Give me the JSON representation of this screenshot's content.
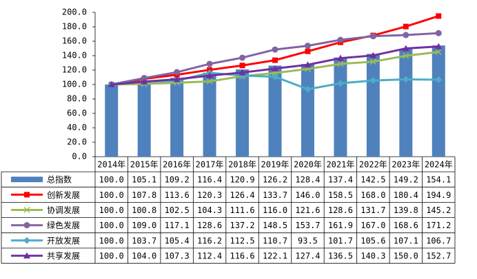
{
  "chart_data": {
    "type": "combo",
    "categories": [
      "2014年",
      "2015年",
      "2016年",
      "2017年",
      "2018年",
      "2019年",
      "2020年",
      "2021年",
      "2022年",
      "2023年",
      "2024年"
    ],
    "ylim": [
      0,
      200
    ],
    "yticks": [
      {
        "value": 0,
        "label": "0.0"
      },
      {
        "value": 20,
        "label": "20.0"
      },
      {
        "value": 40,
        "label": "40.0"
      },
      {
        "value": 60,
        "label": "60.0"
      },
      {
        "value": 80,
        "label": "80.0"
      },
      {
        "value": 100,
        "label": "100.0"
      },
      {
        "value": 120,
        "label": "120.0"
      },
      {
        "value": 140,
        "label": "140.0"
      },
      {
        "value": 160,
        "label": "160.0"
      },
      {
        "value": 180,
        "label": "180.0"
      },
      {
        "value": 200,
        "label": "200.0"
      }
    ],
    "grid": false,
    "series": [
      {
        "name": "总指数",
        "type": "bar",
        "color": "#4f81bd",
        "values": [
          100,
          105.1,
          109.2,
          116.4,
          120.9,
          126.2,
          128.4,
          137.4,
          142.5,
          149.2,
          154.1
        ],
        "value_labels": [
          "100.0",
          "105.1",
          "109.2",
          "116.4",
          "120.9",
          "126.2",
          "128.4",
          "137.4",
          "142.5",
          "149.2",
          "154.1"
        ]
      },
      {
        "name": "创新发展",
        "type": "line",
        "marker": "square",
        "color": "#ff0000",
        "values": [
          100,
          107.8,
          113.6,
          120.3,
          126.4,
          133.7,
          146,
          158.5,
          168,
          180.4,
          194.9
        ],
        "value_labels": [
          "100.0",
          "107.8",
          "113.6",
          "120.3",
          "126.4",
          "133.7",
          "146.0",
          "158.5",
          "168.0",
          "180.4",
          "194.9"
        ]
      },
      {
        "name": "协调发展",
        "type": "line",
        "marker": "x",
        "color": "#9bbb59",
        "values": [
          100,
          100.8,
          102.5,
          104.3,
          111.6,
          116,
          121.6,
          128.6,
          131.7,
          139.8,
          145.2
        ],
        "value_labels": [
          "100.0",
          "100.8",
          "102.5",
          "104.3",
          "111.6",
          "116.0",
          "121.6",
          "128.6",
          "131.7",
          "139.8",
          "145.2"
        ]
      },
      {
        "name": "绿色发展",
        "type": "line",
        "marker": "circle",
        "color": "#8064a2",
        "values": [
          100,
          109,
          117.1,
          128.6,
          137.2,
          148.5,
          153.7,
          161.9,
          167,
          168.6,
          171.2
        ],
        "value_labels": [
          "100.0",
          "109.0",
          "117.1",
          "128.6",
          "137.2",
          "148.5",
          "153.7",
          "161.9",
          "167.0",
          "168.6",
          "171.2"
        ]
      },
      {
        "name": "开放发展",
        "type": "line",
        "marker": "diamond",
        "color": "#4bacc6",
        "values": [
          100,
          103.7,
          105.4,
          116.2,
          112.5,
          110.7,
          93.5,
          101.7,
          105.6,
          107.1,
          106.7
        ],
        "value_labels": [
          "100.0",
          "103.7",
          "105.4",
          "116.2",
          "112.5",
          "110.7",
          "93.5",
          "101.7",
          "105.6",
          "107.1",
          "106.7"
        ]
      },
      {
        "name": "共享发展",
        "type": "line",
        "marker": "triangle",
        "color": "#7030a0",
        "values": [
          100,
          104,
          107.3,
          112.4,
          116.6,
          122.1,
          127.4,
          136.5,
          140.3,
          150,
          152.7
        ],
        "value_labels": [
          "100.0",
          "104.0",
          "107.3",
          "112.4",
          "116.6",
          "122.1",
          "127.4",
          "136.5",
          "140.3",
          "150.0",
          "152.7"
        ]
      }
    ]
  }
}
